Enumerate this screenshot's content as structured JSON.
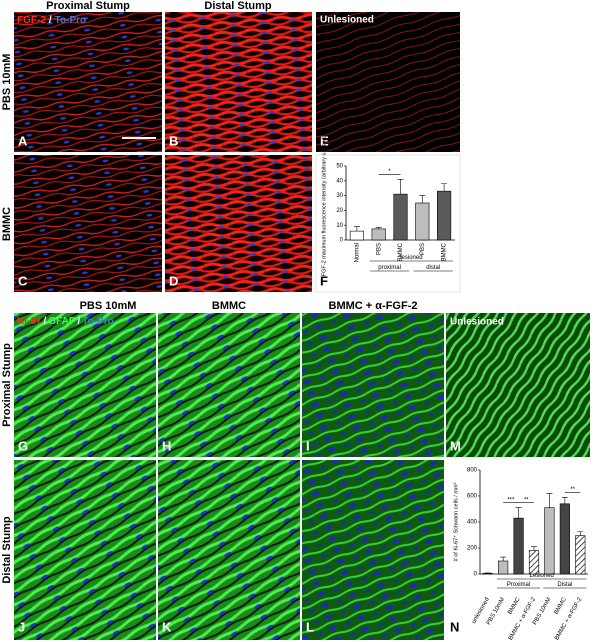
{
  "figure": {
    "top_columns": [
      "Proximal Stump",
      "Distal Stump"
    ],
    "top_rows": [
      "PBS 10mM",
      "BMMC"
    ],
    "top_stain": [
      "FGF-2",
      "/",
      "To-Pro"
    ],
    "bottom_columns": [
      "PBS 10mM",
      "BMMC",
      "BMMC + α-FGF-2"
    ],
    "bottom_rows": [
      "Proximal Stump",
      "Distal Stump"
    ],
    "bottom_stain": [
      "Ki-67",
      "/",
      "GFAP",
      "/",
      "To-Pro"
    ],
    "unlesioned": [
      "Unlesioned",
      "Unlesioned"
    ],
    "panel_letters": [
      "A",
      "B",
      "C",
      "D",
      "E",
      "F",
      "G",
      "H",
      "I",
      "J",
      "K",
      "L",
      "M",
      "N"
    ]
  },
  "chart_data": [
    {
      "type": "bar",
      "ylabel": "FGF-2 maximum fluorescence intensity (arbitrary units x10³)",
      "categories": [
        "Normal",
        "PBS",
        "BMMC",
        "PBS",
        "BMMC"
      ],
      "values": [
        6,
        7.5,
        31,
        25,
        33
      ],
      "errors": [
        3,
        1,
        10,
        5,
        5
      ],
      "colors": [
        "#ffffff",
        "#bdbdbd",
        "#5a5a5a",
        "#bdbdbd",
        "#5a5a5a"
      ],
      "hatched": [
        false,
        false,
        false,
        false,
        false
      ],
      "ylim": [
        0,
        50
      ],
      "yticks": [
        0,
        10,
        20,
        30,
        40,
        50
      ],
      "groups": [
        {
          "label": "lesioned",
          "from": 1,
          "to": 4,
          "row": 0
        },
        {
          "label": "proximal",
          "from": 1,
          "to": 2,
          "row": 1
        },
        {
          "label": "distal",
          "from": 3,
          "to": 4,
          "row": 1
        }
      ],
      "significance": [
        {
          "label": "*",
          "from": 1,
          "to": 2
        }
      ]
    },
    {
      "type": "bar",
      "ylabel": "# of Ki-67⁺ Schwann cells / mm²",
      "categories": [
        "unlesioned",
        "PBS 10mM",
        "BMMC",
        "BMMC + α-FGF-2",
        "PBS 10mM",
        "BMMC",
        "BMMC + α-FGF-2"
      ],
      "values": [
        5,
        100,
        430,
        180,
        510,
        540,
        295
      ],
      "errors": [
        3,
        30,
        80,
        30,
        110,
        50,
        30
      ],
      "colors": [
        "#ffffff",
        "#bdbdbd",
        "#444444",
        "#ffffff",
        "#bdbdbd",
        "#444444",
        "#ffffff"
      ],
      "hatched": [
        false,
        false,
        false,
        true,
        false,
        false,
        true
      ],
      "ylim": [
        0,
        800
      ],
      "yticks": [
        0,
        200,
        400,
        600,
        800
      ],
      "groups": [
        {
          "label": "Lesioned",
          "from": 1,
          "to": 6,
          "row": 0
        },
        {
          "label": "Proximal",
          "from": 1,
          "to": 3,
          "row": 1
        },
        {
          "label": "Distal",
          "from": 4,
          "to": 6,
          "row": 1
        }
      ],
      "significance": [
        {
          "label": "***",
          "from": 1,
          "to": 2
        },
        {
          "label": "**",
          "from": 2,
          "to": 3
        },
        {
          "label": "**",
          "from": 5,
          "to": 6
        }
      ]
    }
  ]
}
